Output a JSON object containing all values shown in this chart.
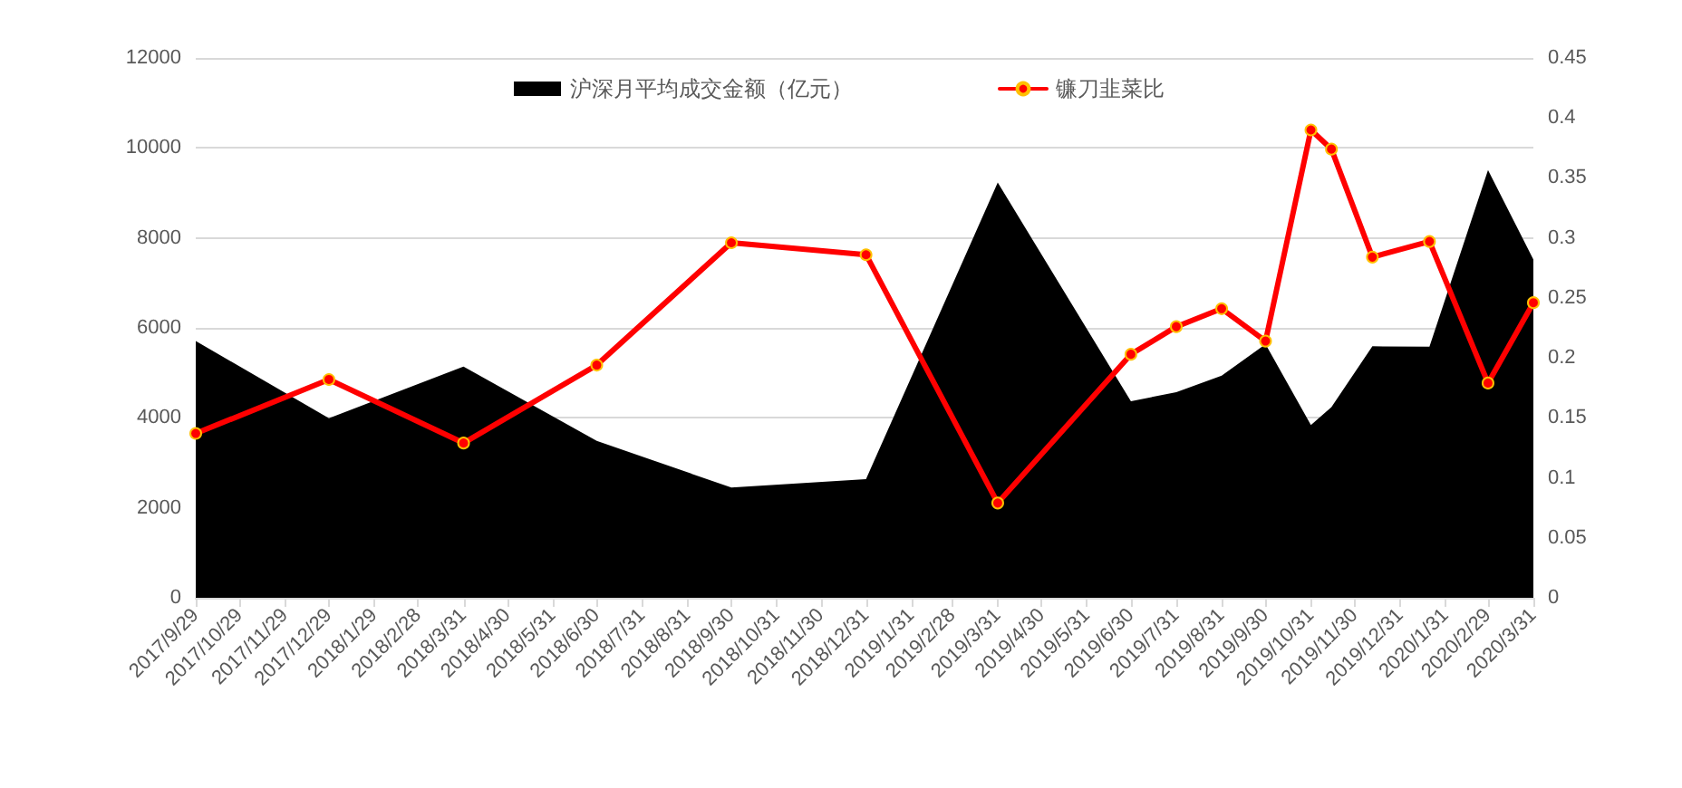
{
  "chart_data": {
    "type": "area",
    "xlim": [
      "2017-09-29",
      "2020-03-31"
    ],
    "xticks": [
      {
        "value": "2017-09-29",
        "label": "2017/9/29"
      },
      {
        "value": "2017-10-29",
        "label": "2017/10/29"
      },
      {
        "value": "2017-11-29",
        "label": "2017/11/29"
      },
      {
        "value": "2017-12-29",
        "label": "2017/12/29"
      },
      {
        "value": "2018-01-29",
        "label": "2018/1/29"
      },
      {
        "value": "2018-02-28",
        "label": "2018/2/28"
      },
      {
        "value": "2018-03-31",
        "label": "2018/3/31"
      },
      {
        "value": "2018-04-30",
        "label": "2018/4/30"
      },
      {
        "value": "2018-05-31",
        "label": "2018/5/31"
      },
      {
        "value": "2018-06-30",
        "label": "2018/6/30"
      },
      {
        "value": "2018-07-31",
        "label": "2018/7/31"
      },
      {
        "value": "2018-08-31",
        "label": "2018/8/31"
      },
      {
        "value": "2018-09-30",
        "label": "2018/9/30"
      },
      {
        "value": "2018-10-31",
        "label": "2018/10/31"
      },
      {
        "value": "2018-11-30",
        "label": "2018/11/30"
      },
      {
        "value": "2018-12-31",
        "label": "2018/12/31"
      },
      {
        "value": "2019-01-31",
        "label": "2019/1/31"
      },
      {
        "value": "2019-02-28",
        "label": "2019/2/28"
      },
      {
        "value": "2019-03-31",
        "label": "2019/3/31"
      },
      {
        "value": "2019-04-30",
        "label": "2019/4/30"
      },
      {
        "value": "2019-05-31",
        "label": "2019/5/31"
      },
      {
        "value": "2019-06-30",
        "label": "2019/6/30"
      },
      {
        "value": "2019-07-31",
        "label": "2019/7/31"
      },
      {
        "value": "2019-08-31",
        "label": "2019/8/31"
      },
      {
        "value": "2019-09-30",
        "label": "2019/9/30"
      },
      {
        "value": "2019-10-31",
        "label": "2019/10/31"
      },
      {
        "value": "2019-11-30",
        "label": "2019/11/30"
      },
      {
        "value": "2019-12-31",
        "label": "2019/12/31"
      },
      {
        "value": "2020-01-31",
        "label": "2020/1/31"
      },
      {
        "value": "2020-02-29",
        "label": "2020/2/29"
      },
      {
        "value": "2020-03-31",
        "label": "2020/3/31"
      }
    ],
    "x": [
      "2017-09-29",
      "2017-12-29",
      "2018-03-31",
      "2018-06-30",
      "2018-09-30",
      "2018-12-31",
      "2019-03-31",
      "2019-06-30",
      "2019-07-31",
      "2019-08-31",
      "2019-09-30",
      "2019-10-31",
      "2019-11-14",
      "2019-12-12",
      "2020-01-20",
      "2020-02-29",
      "2020-03-31"
    ],
    "ylim": [
      0,
      12000
    ],
    "yticks": [
      0,
      2000,
      4000,
      6000,
      8000,
      10000,
      12000
    ],
    "y2lim": [
      0,
      0.45
    ],
    "y2ticks": [
      0,
      0.05,
      0.1,
      0.15,
      0.2,
      0.25,
      0.3,
      0.35,
      0.4,
      0.45
    ],
    "grid": "y",
    "legend": "top",
    "series": [
      {
        "name": "沪深月平均成交金额（亿元）",
        "color": "#000000",
        "values": [
          5710,
          3990,
          5140,
          3490,
          2450,
          2640,
          9230,
          4370,
          4570,
          4940,
          5640,
          3840,
          4240,
          5590,
          5580,
          9510,
          7520
        ]
      },
      {
        "name": "镰刀韭菜比",
        "type": "line",
        "marker": "circle",
        "axis": "y2",
        "color": "#ff0000",
        "values": [
          0.137,
          0.182,
          0.129,
          0.194,
          0.296,
          0.286,
          0.079,
          0.203,
          0.226,
          0.241,
          0.214,
          0.39,
          0.374,
          0.284,
          0.297,
          0.179,
          0.246
        ]
      }
    ]
  }
}
